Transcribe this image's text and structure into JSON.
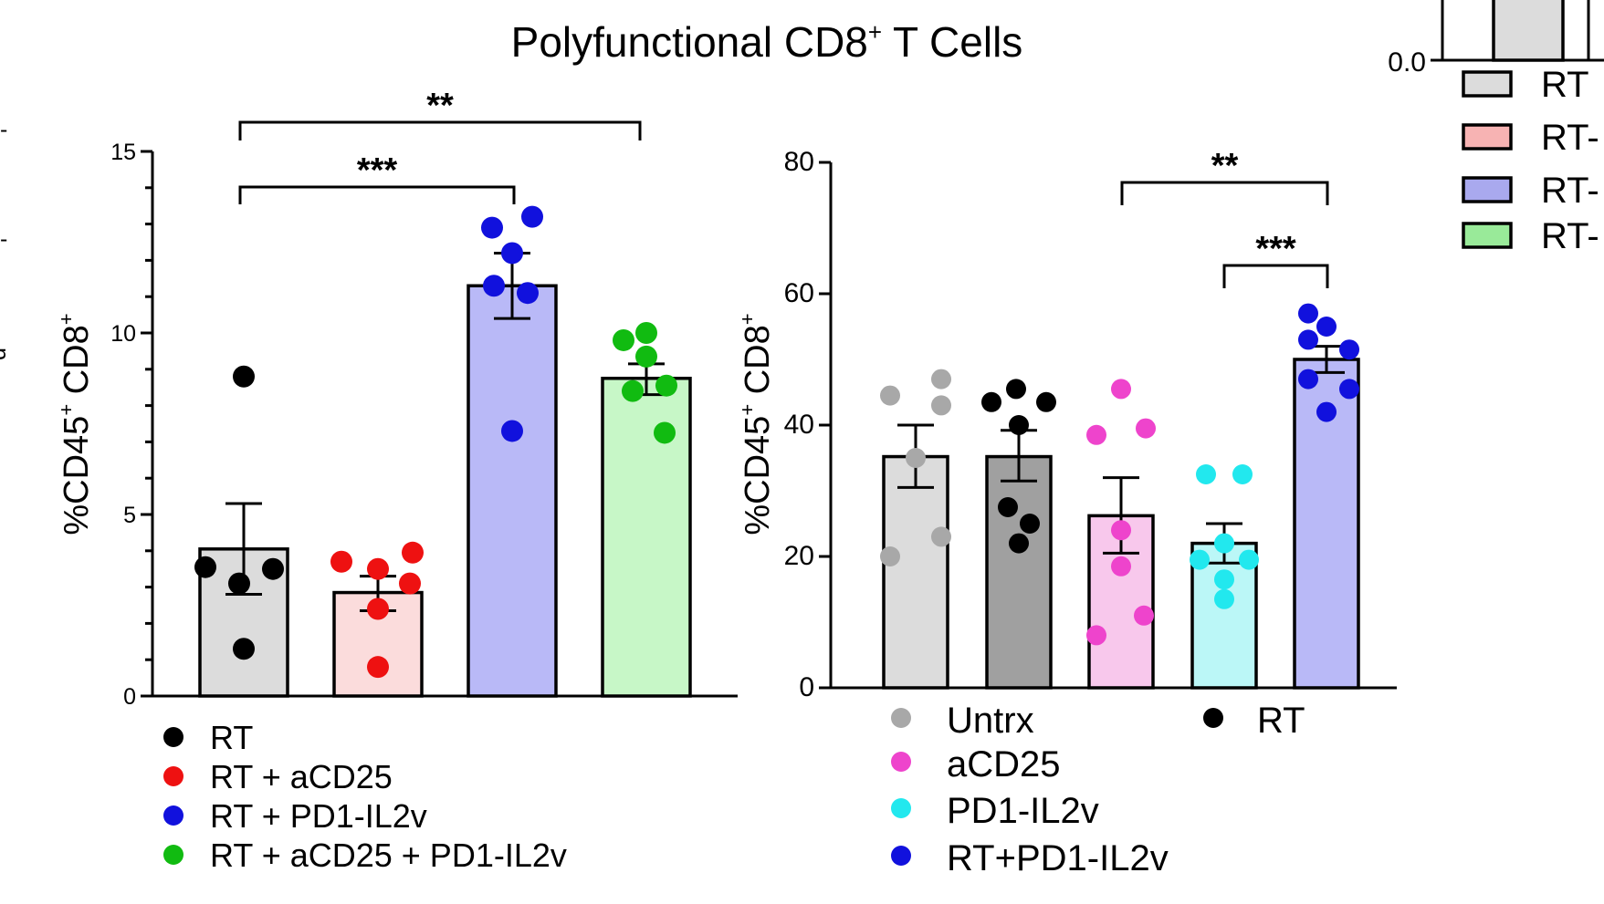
{
  "title": "Polyfunctional CD8",
  "title_sup": "+",
  "title_suffix": " T Cells",
  "chart_data": [
    {
      "type": "bar",
      "ylabel": "%CD45+ CD8+",
      "ylabel_parts": [
        "%CD45",
        "+",
        " CD8",
        "+"
      ],
      "ylim": [
        0,
        15
      ],
      "yticks": [
        "0",
        "5",
        "10",
        "15"
      ],
      "yticks_values": [
        0,
        5,
        10,
        15
      ],
      "bars": [
        {
          "name": "RT",
          "mean": 4.05,
          "sem_low": 2.8,
          "sem_high": 5.3,
          "fill": "#dcdcdc",
          "dot": "#000000",
          "points": [
            8.8,
            3.55,
            3.5,
            3.1,
            1.3
          ]
        },
        {
          "name": "RT + aCD25",
          "mean": 2.85,
          "sem_low": 2.35,
          "sem_high": 3.3,
          "fill": "#fbdcdc",
          "dot": "#ee1111",
          "points": [
            3.7,
            3.5,
            3.95,
            3.1,
            2.4,
            0.8
          ]
        },
        {
          "name": "RT + PD1-IL2v",
          "mean": 11.3,
          "sem_low": 10.4,
          "sem_high": 12.2,
          "fill": "#b9b9f7",
          "dot": "#1111dd",
          "points": [
            12.9,
            13.2,
            12.2,
            11.3,
            11.1,
            7.3
          ]
        },
        {
          "name": "RT + aCD25 + PD1-IL2v",
          "mean": 8.75,
          "sem_low": 8.3,
          "sem_high": 9.15,
          "fill": "#c7f7c7",
          "dot": "#11bb11",
          "points": [
            9.8,
            10.0,
            9.35,
            8.55,
            8.4,
            7.25
          ]
        }
      ],
      "significance": [
        {
          "from": 0,
          "to": 2,
          "label": "***"
        },
        {
          "from": 0,
          "to": 3,
          "label": "**"
        }
      ],
      "legend": [
        {
          "label": "RT",
          "color": "#000000"
        },
        {
          "label": "RT + aCD25",
          "color": "#ee1111"
        },
        {
          "label": "RT + PD1-IL2v",
          "color": "#1111dd"
        },
        {
          "label": "RT + aCD25 + PD1-IL2v",
          "color": "#11bb11"
        }
      ]
    },
    {
      "type": "bar",
      "ylabel": "%CD45+ CD8+",
      "ylabel_parts": [
        "%CD45",
        "+",
        " CD8",
        "+"
      ],
      "ylim": [
        0,
        80
      ],
      "yticks": [
        "0",
        "20",
        "40",
        "60",
        "80"
      ],
      "yticks_values": [
        0,
        20,
        40,
        60,
        80
      ],
      "bars": [
        {
          "name": "Untrx",
          "mean": 35.2,
          "sem_low": 30.5,
          "sem_high": 40.0,
          "fill": "#dcdcdc",
          "dot": "#a8a8a8",
          "points": [
            44.5,
            47.0,
            43.0,
            35.0,
            23.0,
            20.0
          ]
        },
        {
          "name": "RT",
          "mean": 35.2,
          "sem_low": 31.5,
          "sem_high": 39.2,
          "fill": "#a0a0a0",
          "dot": "#000000",
          "points": [
            43.5,
            45.5,
            43.5,
            40.0,
            27.5,
            25.0,
            22.0
          ]
        },
        {
          "name": "aCD25",
          "mean": 26.2,
          "sem_low": 20.5,
          "sem_high": 32.0,
          "fill": "#f8c8ec",
          "dot": "#ee44cc",
          "points": [
            45.5,
            38.5,
            39.5,
            24.0,
            18.5,
            11.0,
            8.0
          ]
        },
        {
          "name": "PD1-IL2v",
          "mean": 22.0,
          "sem_low": 19.0,
          "sem_high": 25.0,
          "fill": "#bbf7f7",
          "dot": "#22e8ee",
          "points": [
            32.5,
            32.5,
            22.0,
            19.5,
            19.5,
            16.5,
            13.5
          ]
        },
        {
          "name": "RT+PD1-IL2v",
          "mean": 50.0,
          "sem_low": 48.0,
          "sem_high": 52.0,
          "fill": "#b9b9f7",
          "dot": "#1111dd",
          "points": [
            57.0,
            55.0,
            53.0,
            51.5,
            47.0,
            45.5,
            42.0
          ]
        }
      ],
      "significance": [
        {
          "from": 4,
          "to": 2,
          "label": "**"
        },
        {
          "from": 4,
          "to": 3,
          "label": "***"
        }
      ],
      "legend": [
        {
          "label": "Untrx",
          "color": "#a8a8a8"
        },
        {
          "label": "RT",
          "color": "#000000"
        },
        {
          "label": "aCD25",
          "color": "#ee44cc"
        },
        {
          "label": "PD1-IL2v",
          "color": "#22e8ee"
        },
        {
          "label": "RT+PD1-IL2v",
          "color": "#1111dd"
        }
      ]
    }
  ],
  "inset": {
    "ytick": "0.0",
    "legend": [
      {
        "label": "RT",
        "fill": "#dcdcdc"
      },
      {
        "label": "RT-",
        "fill": "#f7b3b3"
      },
      {
        "label": "RT-",
        "fill": "#a9a9ee"
      },
      {
        "label": "RT-",
        "fill": "#99ea99"
      }
    ]
  },
  "edge_fragments": [
    "-",
    "-",
    "d"
  ]
}
